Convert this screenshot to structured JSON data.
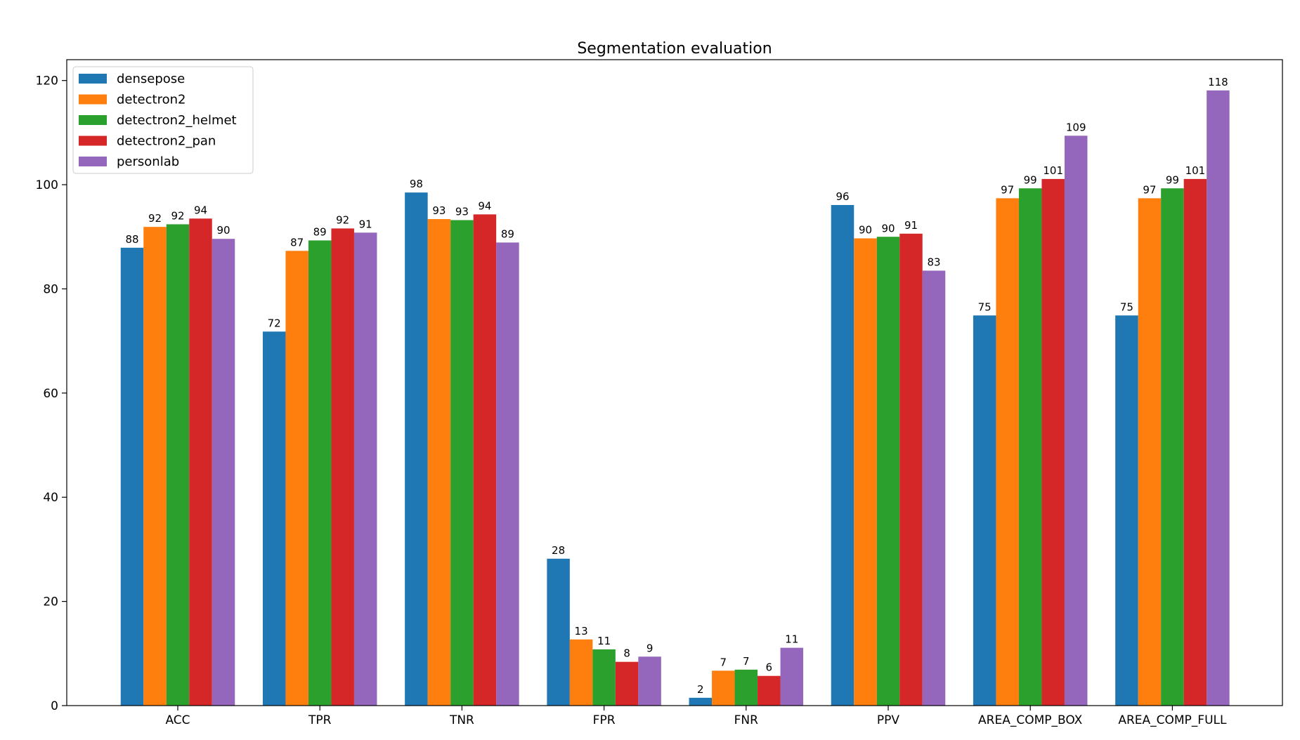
{
  "chart_data": {
    "type": "bar",
    "title": "Segmentation evaluation",
    "xlabel": "",
    "ylabel": "",
    "categories": [
      "ACC",
      "TPR",
      "TNR",
      "FPR",
      "FNR",
      "PPV",
      "AREA_COMP_BOX",
      "AREA_COMP_FULL"
    ],
    "ylim": [
      0,
      124
    ],
    "yticks": [
      0,
      20,
      40,
      60,
      80,
      100,
      120
    ],
    "grid": false,
    "legend_position": "top-left",
    "series": [
      {
        "name": "densepose",
        "color": "#1f77b4",
        "values": [
          87.9,
          71.8,
          98.5,
          28.2,
          1.5,
          96.1,
          74.9,
          74.9
        ],
        "labels": [
          "88",
          "72",
          "98",
          "28",
          "2",
          "96",
          "75",
          "75"
        ]
      },
      {
        "name": "detectron2",
        "color": "#ff7f0e",
        "values": [
          91.9,
          87.3,
          93.4,
          12.7,
          6.7,
          89.7,
          97.4,
          97.4
        ],
        "labels": [
          "92",
          "87",
          "93",
          "13",
          "7",
          "90",
          "97",
          "97"
        ]
      },
      {
        "name": "detectron2_helmet",
        "color": "#2ca02c",
        "values": [
          92.4,
          89.3,
          93.2,
          10.8,
          6.9,
          90.0,
          99.3,
          99.3
        ],
        "labels": [
          "92",
          "89",
          "93",
          "11",
          "7",
          "90",
          "99",
          "99"
        ]
      },
      {
        "name": "detectron2_pan",
        "color": "#d62728",
        "values": [
          93.5,
          91.6,
          94.3,
          8.4,
          5.7,
          90.6,
          101.1,
          101.1
        ],
        "labels": [
          "94",
          "92",
          "94",
          "8",
          "6",
          "91",
          "101",
          "101"
        ]
      },
      {
        "name": "personlab",
        "color": "#9467bd",
        "values": [
          89.6,
          90.8,
          88.9,
          9.4,
          11.1,
          83.5,
          109.4,
          118.1
        ],
        "labels": [
          "90",
          "91",
          "89",
          "9",
          "11",
          "83",
          "109",
          "118"
        ]
      }
    ]
  }
}
